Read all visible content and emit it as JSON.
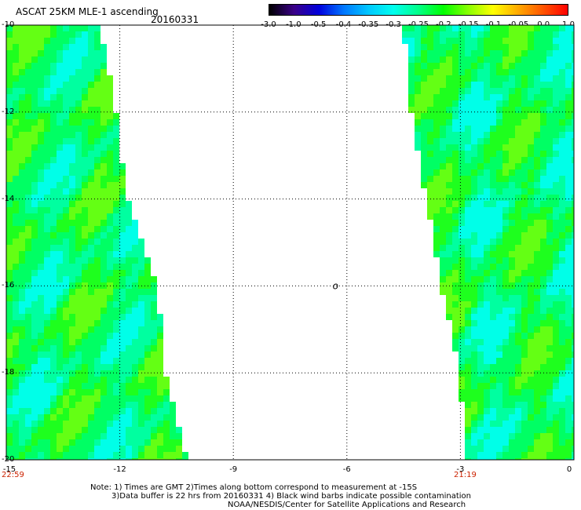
{
  "title": "ASCAT 25KM MLE-1 ascending",
  "date": "20160331",
  "colorbar": {
    "labels": [
      "-3.0",
      "-1.0",
      "-0.5",
      "-0.4",
      "-0.35",
      "-0.3",
      "-0.25",
      "-0.2",
      "-0.15",
      "-0.1",
      "-0.05",
      "0.0",
      "1.0"
    ],
    "colors": [
      "#000000",
      "#3a0088",
      "#0000dd",
      "#0077ff",
      "#00c8ff",
      "#00ffee",
      "#00ff88",
      "#00ff00",
      "#88ff00",
      "#ffff00",
      "#ffaa00",
      "#ff5500",
      "#ff0000"
    ]
  },
  "axes": {
    "lat_ticks": [
      "-10",
      "-12",
      "-14",
      "-16",
      "-18",
      "-20"
    ],
    "lon_ticks": [
      "-15",
      "-12",
      "-9",
      "-6",
      "-3",
      "0"
    ],
    "lat_range": [
      -20,
      -10
    ],
    "lon_range": [
      -15,
      0
    ]
  },
  "times": {
    "left": "22:59",
    "right": "21:19"
  },
  "marker_symbol": "o",
  "marker_position": {
    "lon": -6.3,
    "lat": -16
  },
  "notes": [
    "Note: 1) Times are GMT 2)Times along bottom correspond to measurement at -15S",
    "3)Data buffer is 22 hrs from 20160331 4) Black wind barbs indicate possible contamination",
    "NOAA/NESDIS/Center for Satellite Applications and Research"
  ],
  "chart_data": {
    "type": "heatmap",
    "title": "ASCAT 25KM MLE-1 ascending",
    "subtitle": "20160331",
    "xlabel": "",
    "ylabel": "",
    "xlim": [
      -15,
      0
    ],
    "ylim": [
      -20,
      -10
    ],
    "grid": true,
    "swaths": [
      {
        "boundary_lon_at_lat": [
          [
            -10,
            -12.5
          ],
          [
            -12,
            -12.1
          ],
          [
            -14,
            -11.8
          ],
          [
            -16,
            -11.0
          ],
          [
            -18,
            -10.8
          ],
          [
            -20,
            -10.2
          ]
        ],
        "side": "west",
        "dominant_value_range": [
          -0.3,
          -0.15
        ]
      },
      {
        "boundary_lon_at_lat": [
          [
            -10,
            -4.5
          ],
          [
            -12,
            -4.3
          ],
          [
            -14,
            -3.9
          ],
          [
            -16,
            -3.5
          ],
          [
            -18,
            -3.0
          ],
          [
            -20,
            -2.9
          ]
        ],
        "side": "east",
        "dominant_value_range": [
          -0.25,
          -0.1
        ]
      }
    ]
  }
}
